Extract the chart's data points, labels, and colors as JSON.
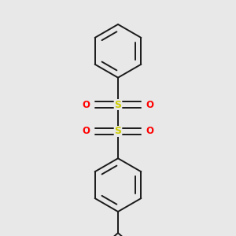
{
  "background_color": "#e8e8e8",
  "line_color": "#1a1a1a",
  "sulfur_color": "#cccc00",
  "oxygen_color": "#ff0000",
  "line_width": 1.4,
  "figsize": [
    3.0,
    3.0
  ],
  "dpi": 100,
  "S_label": "S",
  "O_label": "O",
  "S_fontsize": 9,
  "O_fontsize": 8.5,
  "xlim": [
    -1.3,
    1.3
  ],
  "ylim": [
    -1.55,
    1.55
  ]
}
